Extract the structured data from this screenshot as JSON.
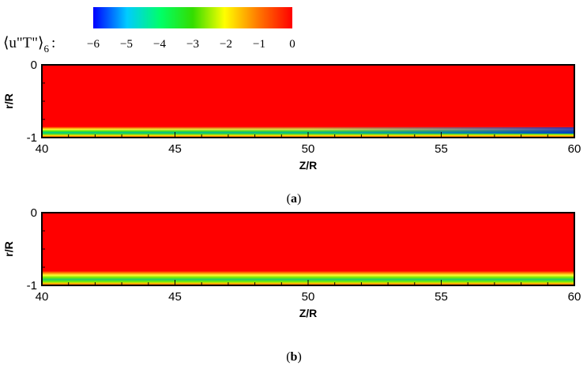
{
  "chart_data": [
    {
      "type": "heatmap",
      "panel_label": "(a)",
      "panel_letter": "a",
      "xlabel": "Z/R",
      "ylabel": "r/R",
      "xlim": [
        40,
        60
      ],
      "ylim": [
        -1,
        0
      ],
      "x_ticks": [
        "40",
        "45",
        "50",
        "55",
        "60"
      ],
      "y_ticks": [
        "0",
        "-1"
      ],
      "field": {
        "background_value": 0,
        "near_wall_band_r": [
          -0.97,
          -0.85
        ],
        "min_value_near_wall": -5.5,
        "min_location": "near Z/R = 60, r/R ≈ -0.92"
      }
    },
    {
      "type": "heatmap",
      "panel_label": "(b)",
      "panel_letter": "b",
      "xlabel": "Z/R",
      "ylabel": "r/R",
      "xlim": [
        40,
        60
      ],
      "ylim": [
        -1,
        0
      ],
      "x_ticks": [
        "40",
        "45",
        "50",
        "55",
        "60"
      ],
      "y_ticks": [
        "0",
        "-1"
      ],
      "field": {
        "background_value": 0,
        "near_wall_band_r": [
          -0.97,
          -0.82
        ],
        "min_value_near_wall": -3.5,
        "min_location": "uniform along Z/R, r/R ≈ -0.92"
      }
    }
  ],
  "colorbar": {
    "title": "⟨u\"T\"⟩",
    "subscript": "6",
    "suffix": ":",
    "range": [
      -6,
      0
    ],
    "tick_labels": [
      "−6",
      "−5",
      "−4",
      "−3",
      "−2",
      "−1",
      "0"
    ],
    "colors": [
      "#0000ff",
      "#00ccff",
      "#00ff66",
      "#33dd00",
      "#ffff00",
      "#ff7700",
      "#ff0000"
    ]
  }
}
